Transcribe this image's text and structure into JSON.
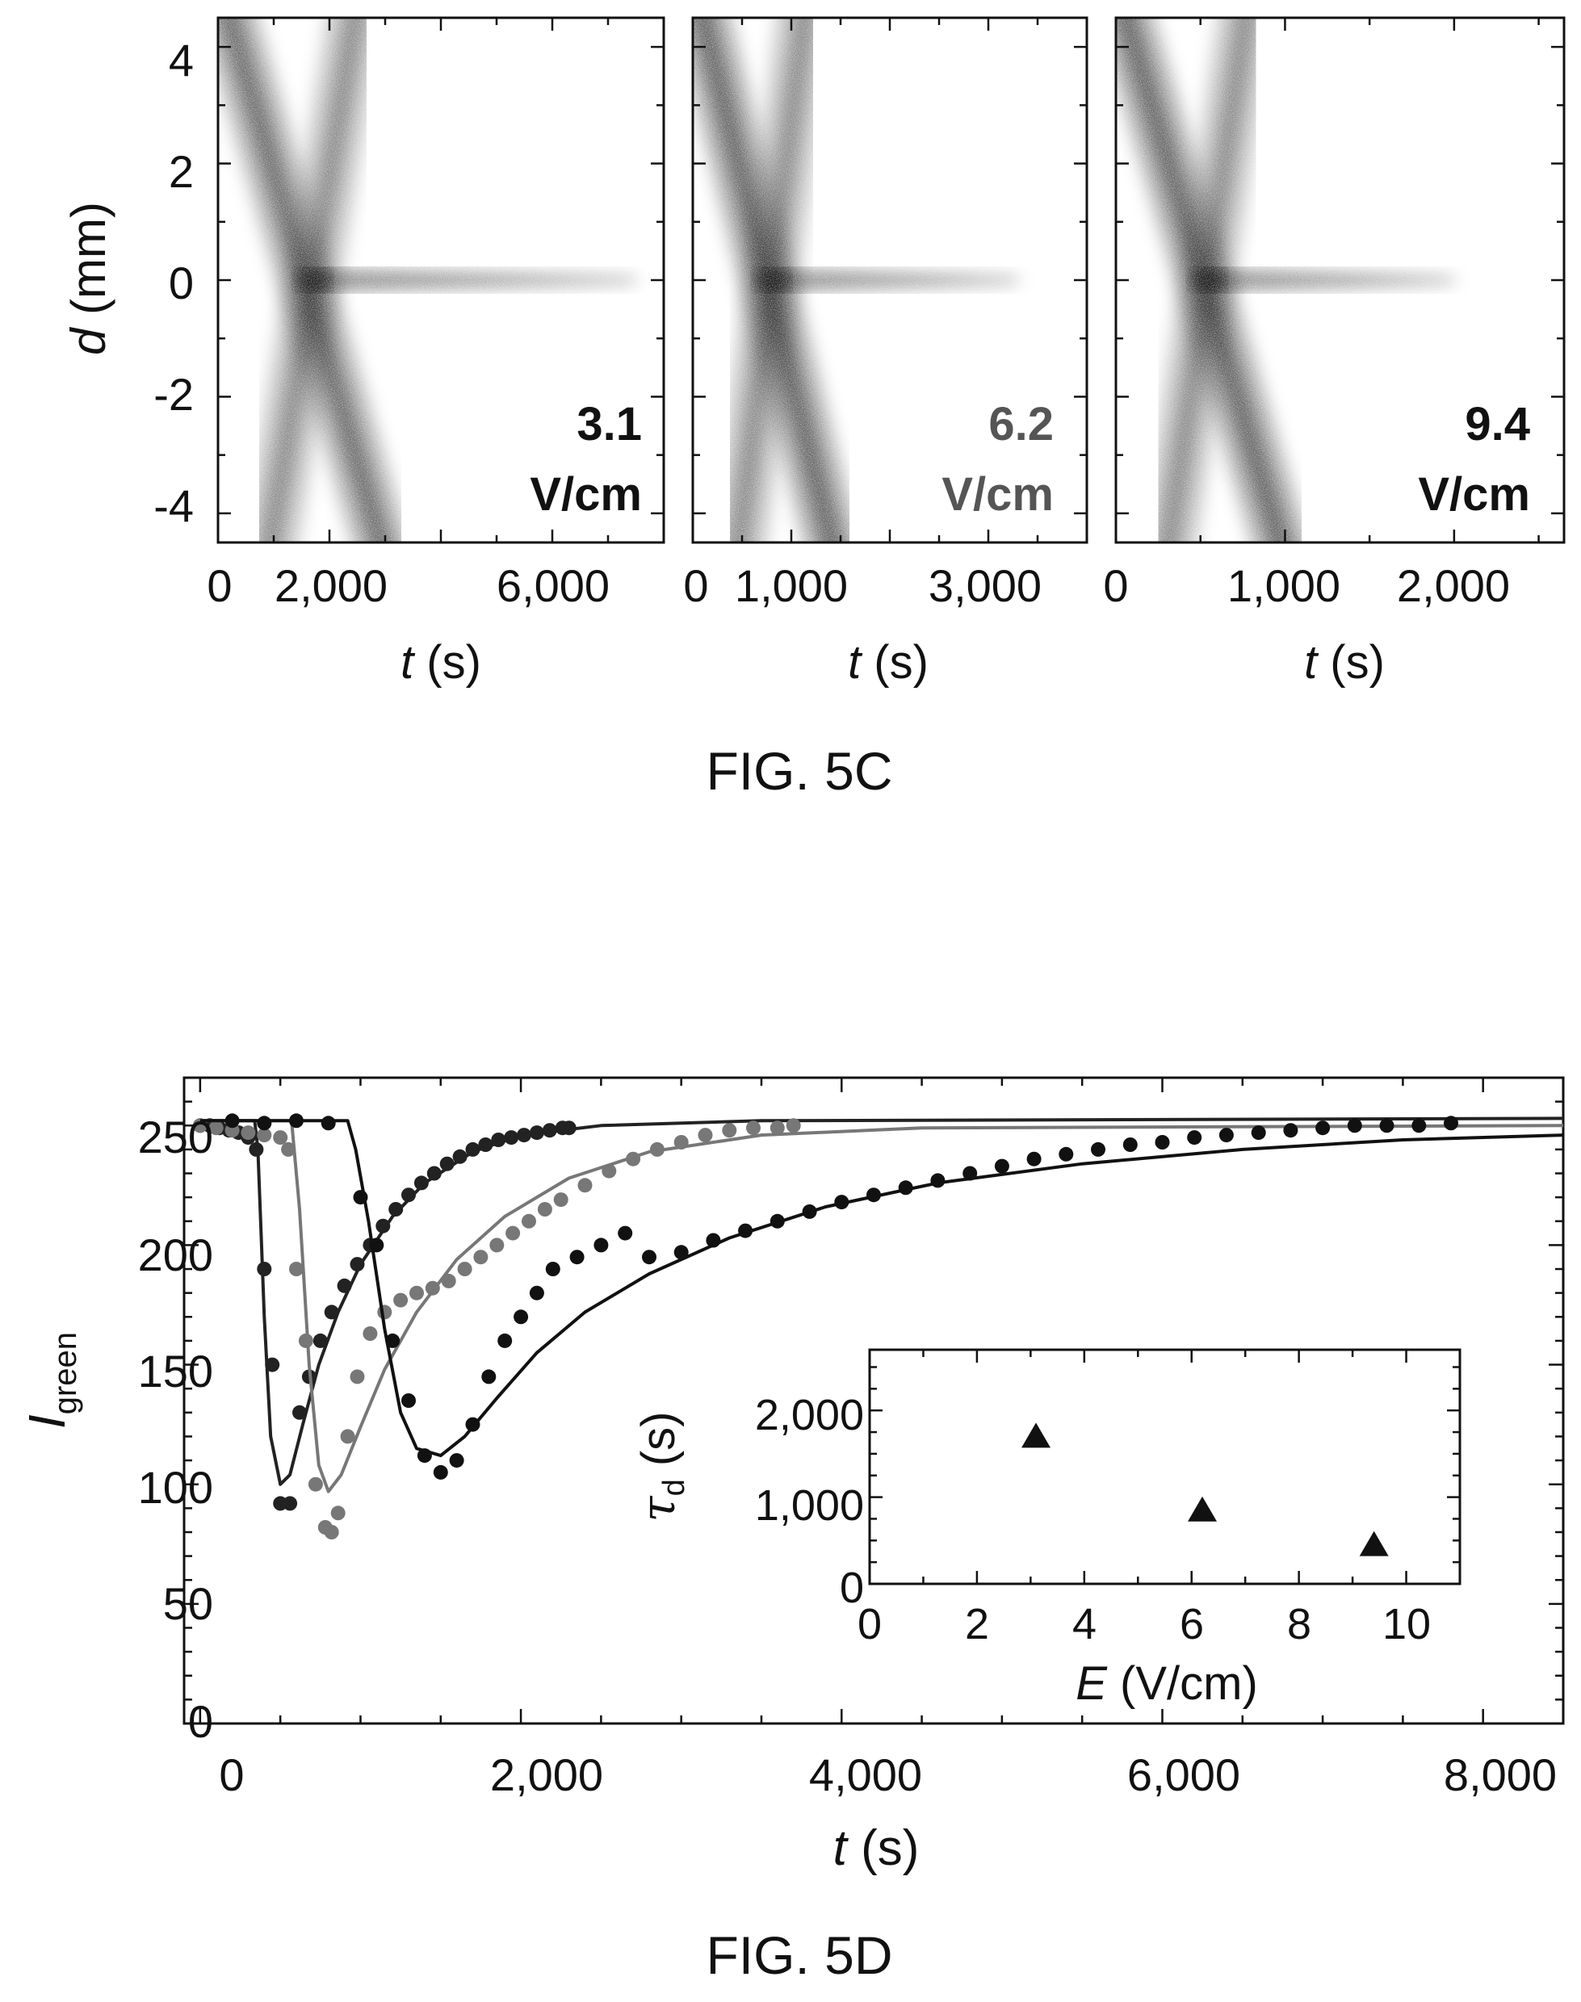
{
  "figure_c": {
    "caption": "FIG. 5C",
    "ylabel_var": "d",
    "ylabel_unit": " (mm)",
    "xlabel_var": "t",
    "xlabel_unit": " (s)",
    "y_ticks": [
      "4",
      "2",
      "0",
      "-2",
      "-4"
    ],
    "panels": [
      {
        "value": "3.1",
        "unit": "V/cm",
        "value_color": "#111111",
        "x_ticks": [
          "0",
          "2,000",
          "6,000"
        ]
      },
      {
        "value": "6.2",
        "unit": "V/cm",
        "value_color": "#555555",
        "x_ticks": [
          "0",
          "1,000",
          "3,000"
        ]
      },
      {
        "value": "9.4",
        "unit": "V/cm",
        "value_color": "#111111",
        "x_ticks": [
          "0",
          "1,000",
          "2,000"
        ]
      }
    ]
  },
  "figure_d": {
    "caption": "FIG. 5D",
    "ylabel_main": "I",
    "ylabel_sub": "green",
    "xlabel_var": "t",
    "xlabel_unit": " (s)",
    "x_ticks": [
      "0",
      "2,000",
      "4,000",
      "6,000",
      "8,000"
    ],
    "y_ticks": [
      "0",
      "50",
      "100",
      "150",
      "200",
      "250"
    ],
    "inset": {
      "ylabel_var": "τ",
      "ylabel_sub": "d",
      "ylabel_unit": " (s)",
      "xlabel_var": "E",
      "xlabel_unit": " (V/cm)",
      "x_ticks": [
        "0",
        "2",
        "4",
        "6",
        "8",
        "10"
      ],
      "y_ticks": [
        "0",
        "1,000",
        "2,000"
      ]
    }
  },
  "chart_data": [
    {
      "type": "heatmap",
      "panel": "3.1 V/cm",
      "xlabel": "t (s)",
      "ylabel": "d (mm)",
      "xlim": [
        0,
        8000
      ],
      "ylim": [
        -4.5,
        4.5
      ],
      "colormap": "grayscale",
      "bands": [
        {
          "t_at_d_plus4_5": 120,
          "t_at_d_minus4_5": 3000,
          "peak_intensity": 0.8
        },
        {
          "t_at_d_plus4_5": 2500,
          "t_at_d_minus4_5": 900,
          "peak_intensity": 0.6
        }
      ],
      "crossing": {
        "t": 1700,
        "d": 0
      },
      "tail_along_d0_to_t": 7500
    },
    {
      "type": "heatmap",
      "panel": "6.2 V/cm",
      "xlabel": "t (s)",
      "ylabel": "d (mm)",
      "xlim": [
        0,
        4000
      ],
      "ylim": [
        -4.5,
        4.5
      ],
      "colormap": "grayscale",
      "bands": [
        {
          "t_at_d_plus4_5": 60,
          "t_at_d_minus4_5": 1450,
          "peak_intensity": 0.85
        },
        {
          "t_at_d_plus4_5": 1150,
          "t_at_d_minus4_5": 450,
          "peak_intensity": 0.6
        }
      ],
      "crossing": {
        "t": 800,
        "d": 0
      },
      "tail_along_d0_to_t": 3300
    },
    {
      "type": "heatmap",
      "panel": "9.4 V/cm",
      "xlabel": "t (s)",
      "ylabel": "d (mm)",
      "xlim": [
        0,
        2650
      ],
      "ylim": [
        -4.5,
        4.5
      ],
      "colormap": "grayscale",
      "bands": [
        {
          "t_at_d_plus4_5": 30,
          "t_at_d_minus4_5": 1000,
          "peak_intensity": 0.85
        },
        {
          "t_at_d_plus4_5": 780,
          "t_at_d_minus4_5": 300,
          "peak_intensity": 0.6
        }
      ],
      "crossing": {
        "t": 540,
        "d": 0
      },
      "tail_along_d0_to_t": 2000
    },
    {
      "type": "scatter",
      "xlabel": "t (s)",
      "ylabel": "I green",
      "xlim": [
        -100,
        8500
      ],
      "ylim": [
        0,
        270
      ],
      "grid": false,
      "series": [
        {
          "color": "#222222",
          "points": [
            [
              0,
              250
            ],
            [
              60,
              250
            ],
            [
              120,
              249
            ],
            [
              180,
              248
            ],
            [
              240,
              247
            ],
            [
              300,
              245
            ],
            [
              350,
              240
            ],
            [
              400,
              190
            ],
            [
              450,
              150
            ],
            [
              500,
              92
            ],
            [
              560,
              92
            ],
            [
              620,
              130
            ],
            [
              680,
              145
            ],
            [
              750,
              160
            ],
            [
              820,
              172
            ],
            [
              900,
              183
            ],
            [
              980,
              192
            ],
            [
              1060,
              200
            ],
            [
              1140,
              208
            ],
            [
              1220,
              215
            ],
            [
              1300,
              221
            ],
            [
              1380,
              226
            ],
            [
              1460,
              230
            ],
            [
              1540,
              234
            ],
            [
              1620,
              237
            ],
            [
              1700,
              240
            ],
            [
              1780,
              242
            ],
            [
              1860,
              244
            ],
            [
              1940,
              245
            ],
            [
              2020,
              246
            ],
            [
              2100,
              247
            ],
            [
              2180,
              248
            ],
            [
              2260,
              249
            ],
            [
              2300,
              249
            ]
          ],
          "fit": [
            [
              0,
              252
            ],
            [
              340,
              252
            ],
            [
              360,
              240
            ],
            [
              400,
              170
            ],
            [
              440,
              120
            ],
            [
              500,
              100
            ],
            [
              560,
              104
            ],
            [
              640,
              125
            ],
            [
              740,
              150
            ],
            [
              860,
              172
            ],
            [
              1000,
              192
            ],
            [
              1200,
              212
            ],
            [
              1400,
              226
            ],
            [
              1700,
              239
            ],
            [
              2000,
              246
            ],
            [
              2500,
              250
            ],
            [
              3500,
              252
            ],
            [
              8500,
              253
            ]
          ]
        },
        {
          "color": "#777777",
          "points": [
            [
              0,
              250
            ],
            [
              100,
              249
            ],
            [
              200,
              248
            ],
            [
              300,
              247
            ],
            [
              400,
              246
            ],
            [
              500,
              245
            ],
            [
              550,
              240
            ],
            [
              600,
              190
            ],
            [
              660,
              160
            ],
            [
              720,
              100
            ],
            [
              780,
              82
            ],
            [
              820,
              80
            ],
            [
              860,
              88
            ],
            [
              920,
              120
            ],
            [
              980,
              145
            ],
            [
              1060,
              163
            ],
            [
              1150,
              172
            ],
            [
              1250,
              177
            ],
            [
              1350,
              180
            ],
            [
              1450,
              182
            ],
            [
              1550,
              185
            ],
            [
              1650,
              190
            ],
            [
              1750,
              195
            ],
            [
              1850,
              200
            ],
            [
              1950,
              205
            ],
            [
              2050,
              210
            ],
            [
              2150,
              215
            ],
            [
              2250,
              219
            ],
            [
              2400,
              225
            ],
            [
              2550,
              231
            ],
            [
              2700,
              236
            ],
            [
              2850,
              240
            ],
            [
              3000,
              243
            ],
            [
              3150,
              246
            ],
            [
              3300,
              248
            ],
            [
              3450,
              249
            ],
            [
              3600,
              249
            ],
            [
              3700,
              250
            ]
          ],
          "fit": [
            [
              0,
              252
            ],
            [
              570,
              252
            ],
            [
              620,
              215
            ],
            [
              680,
              150
            ],
            [
              740,
              108
            ],
            [
              800,
              97
            ],
            [
              880,
              104
            ],
            [
              1000,
              124
            ],
            [
              1150,
              148
            ],
            [
              1350,
              172
            ],
            [
              1600,
              194
            ],
            [
              1900,
              212
            ],
            [
              2300,
              228
            ],
            [
              2800,
              239
            ],
            [
              3500,
              246
            ],
            [
              4500,
              249
            ],
            [
              8500,
              250
            ]
          ]
        },
        {
          "color": "#111111",
          "points": [
            [
              200,
              252
            ],
            [
              400,
              251
            ],
            [
              600,
              252
            ],
            [
              800,
              251
            ],
            [
              1000,
              220
            ],
            [
              1100,
              200
            ],
            [
              1200,
              160
            ],
            [
              1300,
              135
            ],
            [
              1400,
              112
            ],
            [
              1500,
              105
            ],
            [
              1600,
              110
            ],
            [
              1700,
              125
            ],
            [
              1800,
              145
            ],
            [
              1900,
              160
            ],
            [
              2000,
              170
            ],
            [
              2100,
              180
            ],
            [
              2200,
              190
            ],
            [
              2350,
              195
            ],
            [
              2500,
              200
            ],
            [
              2650,
              205
            ],
            [
              2800,
              195
            ],
            [
              3000,
              197
            ],
            [
              3200,
              202
            ],
            [
              3400,
              206
            ],
            [
              3600,
              210
            ],
            [
              3800,
              214
            ],
            [
              4000,
              218
            ],
            [
              4200,
              221
            ],
            [
              4400,
              224
            ],
            [
              4600,
              227
            ],
            [
              4800,
              230
            ],
            [
              5000,
              233
            ],
            [
              5200,
              236
            ],
            [
              5400,
              238
            ],
            [
              5600,
              240
            ],
            [
              5800,
              242
            ],
            [
              6000,
              243
            ],
            [
              6200,
              245
            ],
            [
              6400,
              246
            ],
            [
              6600,
              247
            ],
            [
              6800,
              248
            ],
            [
              7000,
              249
            ],
            [
              7200,
              250
            ],
            [
              7400,
              250
            ],
            [
              7600,
              250
            ],
            [
              7800,
              251
            ]
          ],
          "fit": [
            [
              0,
              252
            ],
            [
              920,
              252
            ],
            [
              970,
              240
            ],
            [
              1050,
              210
            ],
            [
              1150,
              165
            ],
            [
              1250,
              130
            ],
            [
              1350,
              115
            ],
            [
              1500,
              112
            ],
            [
              1650,
              120
            ],
            [
              1850,
              136
            ],
            [
              2100,
              155
            ],
            [
              2400,
              172
            ],
            [
              2800,
              188
            ],
            [
              3300,
              203
            ],
            [
              3900,
              216
            ],
            [
              4600,
              226
            ],
            [
              5500,
              234
            ],
            [
              6500,
              240
            ],
            [
              7500,
              244
            ],
            [
              8500,
              246
            ]
          ]
        }
      ]
    },
    {
      "type": "scatter",
      "xlabel": "E (V/cm)",
      "ylabel": "τd (s)",
      "xlim": [
        0,
        11
      ],
      "ylim": [
        0,
        2700
      ],
      "marker": "triangle",
      "x": [
        3.1,
        6.2,
        9.4
      ],
      "y": [
        1700,
        850,
        450
      ]
    }
  ]
}
